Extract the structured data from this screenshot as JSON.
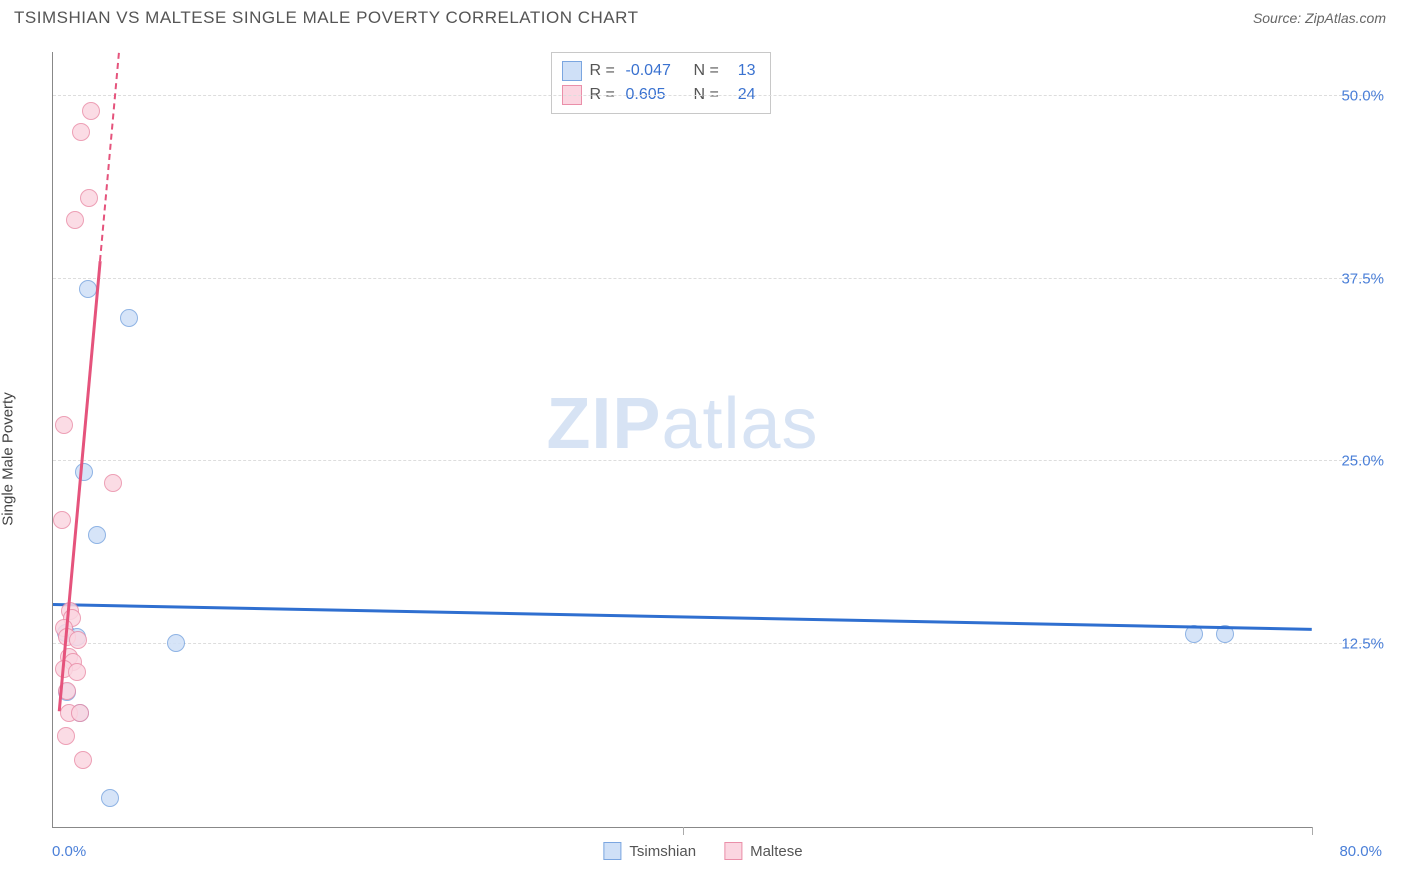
{
  "header": {
    "title": "TSIMSHIAN VS MALTESE SINGLE MALE POVERTY CORRELATION CHART",
    "source": "Source: ZipAtlas.com"
  },
  "chart": {
    "type": "scatter",
    "ylabel": "Single Male Poverty",
    "xlim": [
      0,
      80
    ],
    "ylim": [
      0,
      53
    ],
    "xtick_min_label": "0.0%",
    "xtick_max_label": "80.0%",
    "yticks": [
      {
        "v": 12.5,
        "label": "12.5%"
      },
      {
        "v": 25.0,
        "label": "25.0%"
      },
      {
        "v": 37.5,
        "label": "37.5%"
      },
      {
        "v": 50.0,
        "label": "50.0%"
      }
    ],
    "xticks_major": [
      40,
      80
    ],
    "background_color": "#ffffff",
    "grid_color": "#dddddd",
    "axis_color": "#888888",
    "tick_label_color": "#4a7fd8",
    "marker_radius": 9,
    "marker_stroke_width": 1.5,
    "watermark": {
      "zip": "ZIP",
      "atlas": "atlas",
      "color": "#d7e3f4"
    },
    "series": [
      {
        "name": "Tsimshian",
        "fill": "#cfe0f7",
        "stroke": "#7ba6e0",
        "trend_color": "#2f6fd0",
        "trend": {
          "x1": 0,
          "y1": 15.3,
          "x2": 80,
          "y2": 13.6,
          "dashed": false
        },
        "stats": {
          "R": "-0.047",
          "N": "13"
        },
        "points": [
          {
            "x": 2.2,
            "y": 36.8
          },
          {
            "x": 4.8,
            "y": 34.8
          },
          {
            "x": 2.0,
            "y": 24.3
          },
          {
            "x": 2.8,
            "y": 20.0
          },
          {
            "x": 0.8,
            "y": 13.3
          },
          {
            "x": 1.5,
            "y": 13.0
          },
          {
            "x": 7.8,
            "y": 12.6
          },
          {
            "x": 0.9,
            "y": 9.2
          },
          {
            "x": 1.7,
            "y": 7.8
          },
          {
            "x": 3.6,
            "y": 2.0
          },
          {
            "x": 72.5,
            "y": 13.2
          },
          {
            "x": 74.5,
            "y": 13.2
          }
        ]
      },
      {
        "name": "Maltese",
        "fill": "#fbd6e1",
        "stroke": "#ea8fa9",
        "trend_color": "#e5537c",
        "trend": {
          "x1": 0.4,
          "y1": 8.0,
          "x2": 4.2,
          "y2": 53,
          "dashed_after_x": 3.0
        },
        "stats": {
          "R": "0.605",
          "N": "24"
        },
        "points": [
          {
            "x": 2.4,
            "y": 49.0
          },
          {
            "x": 1.8,
            "y": 47.5
          },
          {
            "x": 2.3,
            "y": 43.0
          },
          {
            "x": 1.4,
            "y": 41.5
          },
          {
            "x": 0.7,
            "y": 27.5
          },
          {
            "x": 3.8,
            "y": 23.5
          },
          {
            "x": 0.6,
            "y": 21.0
          },
          {
            "x": 1.1,
            "y": 14.8
          },
          {
            "x": 1.2,
            "y": 14.3
          },
          {
            "x": 0.7,
            "y": 13.6
          },
          {
            "x": 0.9,
            "y": 13.0
          },
          {
            "x": 1.6,
            "y": 12.8
          },
          {
            "x": 1.0,
            "y": 11.6
          },
          {
            "x": 1.3,
            "y": 11.3
          },
          {
            "x": 0.7,
            "y": 10.8
          },
          {
            "x": 1.5,
            "y": 10.6
          },
          {
            "x": 0.9,
            "y": 9.3
          },
          {
            "x": 1.0,
            "y": 7.8
          },
          {
            "x": 1.7,
            "y": 7.8
          },
          {
            "x": 0.8,
            "y": 6.2
          },
          {
            "x": 1.9,
            "y": 4.6
          }
        ]
      }
    ]
  }
}
